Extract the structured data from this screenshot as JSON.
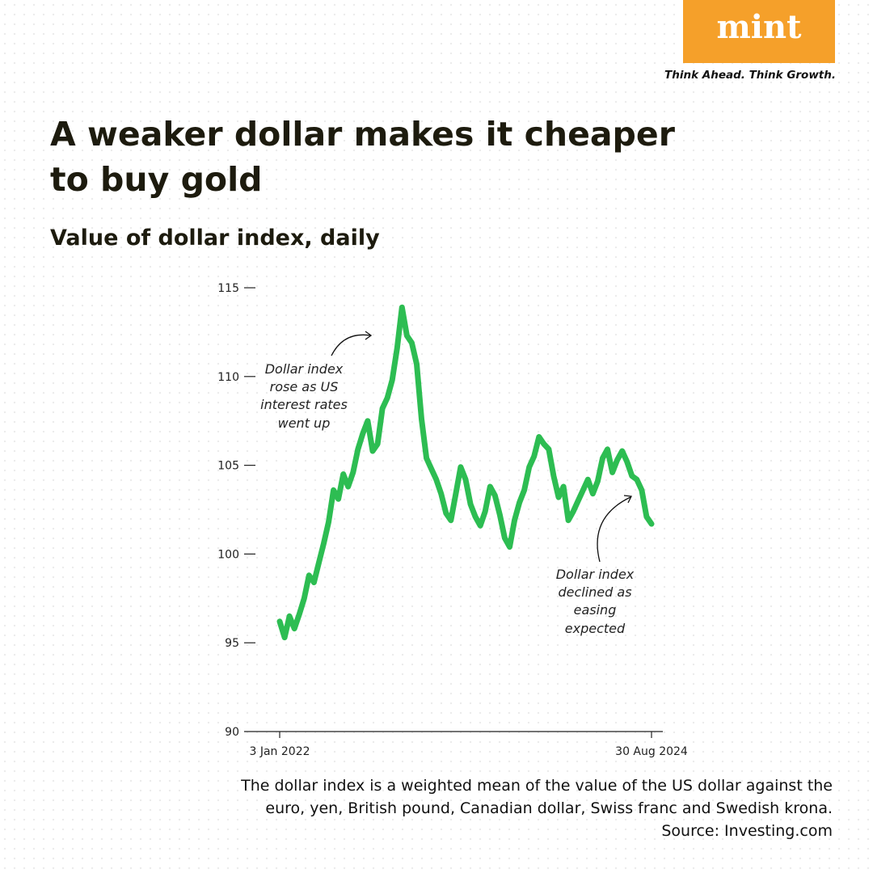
{
  "brand": {
    "logo": "mint",
    "tagline": "Think Ahead. Think Growth."
  },
  "chart_data": {
    "type": "line",
    "title": [
      "A weaker dollar makes it cheaper",
      "to buy gold"
    ],
    "subtitle": "Value of dollar index, daily",
    "categories": [
      "3 Jan 2022",
      null,
      null,
      null,
      null,
      null,
      null,
      null,
      null,
      null,
      null,
      null,
      null,
      null,
      null,
      null,
      null,
      null,
      null,
      null,
      null,
      null,
      null,
      null,
      null,
      null,
      null,
      null,
      null,
      null,
      null,
      null,
      null,
      null,
      null,
      null,
      null,
      null,
      null,
      null,
      null,
      null,
      null,
      null,
      null,
      null,
      null,
      null,
      null,
      null,
      null,
      null,
      null,
      null,
      null,
      null,
      null,
      null,
      null,
      null,
      null,
      null,
      null,
      null,
      null,
      null,
      null,
      null,
      null,
      null,
      null,
      null,
      null,
      null,
      null,
      null,
      "30 Aug 2024"
    ],
    "series": [
      {
        "name": "Dollar index",
        "color": "#2dbd52",
        "values": [
          96.2,
          95.3,
          96.5,
          95.8,
          96.6,
          97.5,
          98.8,
          98.4,
          99.5,
          100.6,
          101.8,
          103.6,
          103.1,
          104.5,
          103.8,
          104.6,
          105.9,
          106.8,
          107.5,
          105.8,
          106.2,
          108.2,
          108.8,
          109.8,
          111.6,
          113.9,
          112.3,
          111.9,
          110.7,
          107.6,
          105.4,
          104.8,
          104.2,
          103.4,
          102.3,
          101.9,
          103.4,
          104.9,
          104.2,
          102.8,
          102.1,
          101.6,
          102.4,
          103.8,
          103.3,
          102.2,
          100.9,
          100.4,
          101.9,
          102.9,
          103.6,
          104.9,
          105.5,
          106.6,
          106.2,
          105.9,
          104.4,
          103.2,
          103.8,
          101.9,
          102.4,
          103.0,
          103.6,
          104.2,
          103.4,
          104.1,
          105.4,
          105.9,
          104.6,
          105.3,
          105.8,
          105.2,
          104.4,
          104.2,
          103.6,
          102.1,
          101.7
        ]
      }
    ],
    "ylim": [
      90,
      115
    ],
    "yticks": [
      90,
      95,
      100,
      105,
      110,
      115
    ],
    "annotations": [
      [
        "Dollar index",
        "rose as US",
        "interest rates",
        "went up"
      ],
      [
        "Dollar index",
        "declined as",
        "easing",
        "expected"
      ]
    ],
    "note": [
      "The dollar index is a weighted mean of the value of the US dollar against the",
      "euro, yen, British pound, Canadian dollar, Swiss franc and Swedish krona.",
      "Source: Investing.com"
    ]
  }
}
